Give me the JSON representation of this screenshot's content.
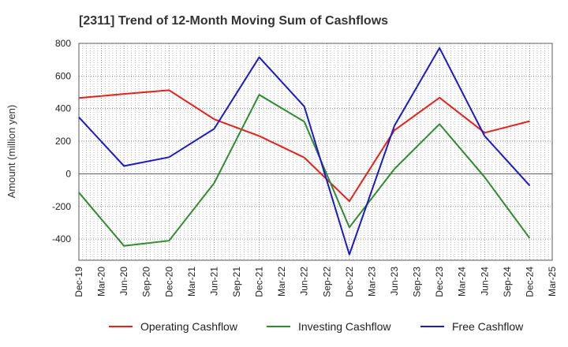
{
  "chart_data": {
    "type": "line",
    "title": "[2311]  Trend of 12-Month Moving Sum of Cashflows",
    "xlabel": "",
    "ylabel": "Amount (million yen)",
    "ylim": [
      -530,
      800
    ],
    "yticks": [
      800,
      600,
      400,
      200,
      0,
      -200,
      -400
    ],
    "categories": [
      "Dec-19",
      "Mar-20",
      "Jun-20",
      "Sep-20",
      "Dec-20",
      "Mar-21",
      "Jun-21",
      "Sep-21",
      "Dec-21",
      "Mar-22",
      "Jun-22",
      "Sep-22",
      "Dec-22",
      "Mar-23",
      "Jun-23",
      "Sep-23",
      "Dec-23",
      "Mar-24",
      "Jun-24",
      "Sep-24",
      "Dec-24",
      "Mar-25"
    ],
    "grid": true,
    "legend_position": "bottom",
    "series": [
      {
        "name": "Operating Cashflow",
        "color": "#e8201a",
        "points": [
          [
            "Dec-19",
            465
          ],
          [
            "Jun-20",
            490
          ],
          [
            "Dec-20",
            513
          ],
          [
            "Jun-21",
            335
          ],
          [
            "Dec-21",
            232
          ],
          [
            "Jun-22",
            100
          ],
          [
            "Dec-22",
            -168
          ],
          [
            "Jun-23",
            267
          ],
          [
            "Dec-23",
            467
          ],
          [
            "Jun-24",
            252
          ],
          [
            "Dec-24",
            323
          ]
        ]
      },
      {
        "name": "Investing Cashflow",
        "color": "#2e8b2e",
        "points": [
          [
            "Dec-19",
            -115
          ],
          [
            "Jun-20",
            -442
          ],
          [
            "Dec-20",
            -410
          ],
          [
            "Jun-21",
            -57
          ],
          [
            "Dec-21",
            485
          ],
          [
            "Jun-22",
            320
          ],
          [
            "Dec-22",
            -328
          ],
          [
            "Jun-23",
            30
          ],
          [
            "Dec-23",
            305
          ],
          [
            "Jun-24",
            -20
          ],
          [
            "Dec-24",
            -395
          ]
        ]
      },
      {
        "name": "Free Cashflow",
        "color": "#1a1acc",
        "points": [
          [
            "Dec-19",
            347
          ],
          [
            "Jun-20",
            48
          ],
          [
            "Dec-20",
            102
          ],
          [
            "Jun-21",
            276
          ],
          [
            "Dec-21",
            715
          ],
          [
            "Jun-22",
            413
          ],
          [
            "Dec-22",
            -495
          ],
          [
            "Jun-23",
            295
          ],
          [
            "Dec-23",
            772
          ],
          [
            "Jun-24",
            232
          ],
          [
            "Dec-24",
            -72
          ]
        ]
      }
    ]
  }
}
